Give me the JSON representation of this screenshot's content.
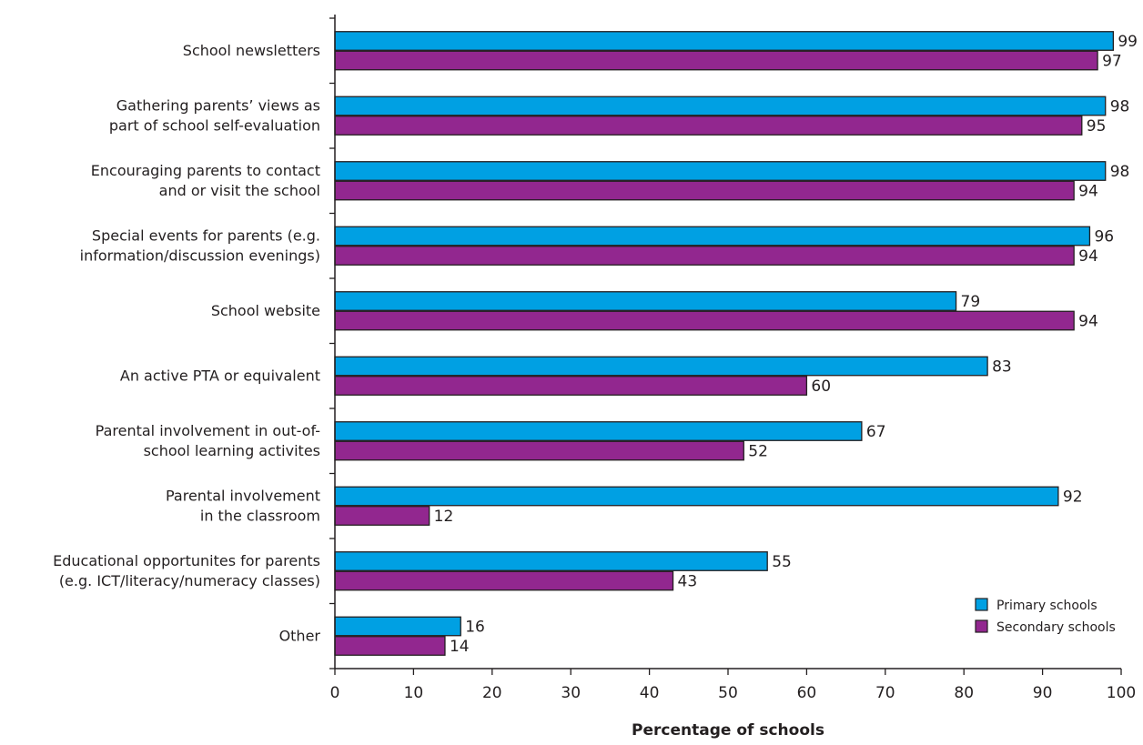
{
  "chart_data": {
    "type": "bar",
    "orientation": "horizontal",
    "categories": [
      [
        "School newsletters"
      ],
      [
        "Gathering parents’ views as",
        "part of school self-evaluation"
      ],
      [
        "Encouraging parents to contact",
        "and or visit the school"
      ],
      [
        "Special events for parents (e.g.",
        "information/discussion evenings)"
      ],
      [
        "School website"
      ],
      [
        "An active PTA or equivalent"
      ],
      [
        "Parental involvement in out-of-",
        "school learning activites"
      ],
      [
        "Parental involvement",
        "in the classroom"
      ],
      [
        "Educational opportunites for parents",
        "(e.g. ICT/literacy/numeracy classes)"
      ],
      [
        "Other"
      ]
    ],
    "series": [
      {
        "name": "Primary schools",
        "color": "#00a0e3",
        "values": [
          99,
          98,
          98,
          96,
          79,
          83,
          67,
          92,
          55,
          16
        ]
      },
      {
        "name": "Secondary schools",
        "color": "#92278f",
        "values": [
          97,
          95,
          94,
          94,
          94,
          60,
          52,
          12,
          43,
          14
        ]
      }
    ],
    "xlabel": "Percentage of schools",
    "xlim": [
      0,
      100
    ],
    "xticks": [
      0,
      10,
      20,
      30,
      40,
      50,
      60,
      70,
      80,
      90,
      100
    ],
    "legend_position": "bottom-right",
    "grid": false
  }
}
